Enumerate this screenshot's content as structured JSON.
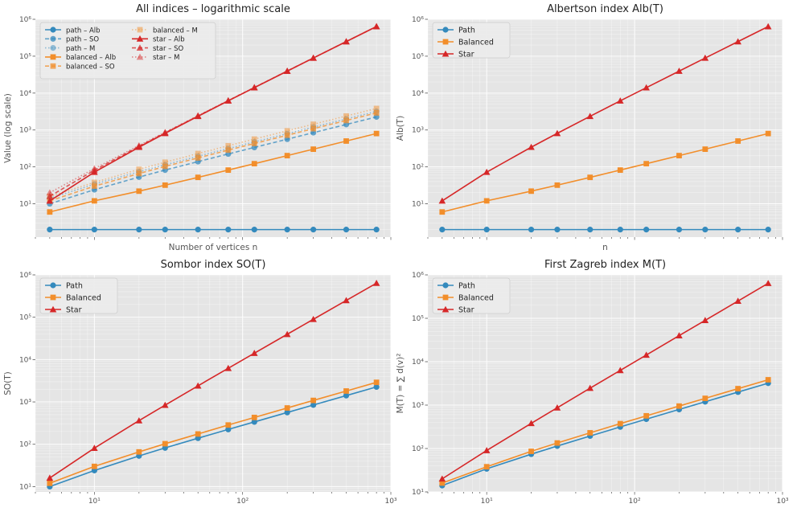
{
  "figure": {
    "colors": {
      "path": "#348abd",
      "balanced": "#f28e2b",
      "star": "#d62728",
      "axes_bg": "#e5e5e5",
      "grid": "#ffffff"
    }
  },
  "chart_data": [
    {
      "type": "line",
      "title": "All indices – logarithmic scale",
      "xlabel": "Number of vertices n",
      "ylabel": "Value (log scale)",
      "xscale": "log",
      "yscale": "log",
      "xlim": [
        4,
        1000
      ],
      "ylim": [
        1.25,
        1000000
      ],
      "show_x_ticklabels": false,
      "legend": "upper-left, 2 columns",
      "x": [
        5,
        10,
        20,
        30,
        50,
        80,
        120,
        200,
        300,
        500,
        800
      ],
      "series": [
        {
          "name": "path – Alb",
          "group": "path",
          "style": "solid",
          "marker": "o",
          "alpha": 1.0,
          "values": [
            2,
            2,
            2,
            2,
            2,
            2,
            2,
            2,
            2,
            2,
            2
          ]
        },
        {
          "name": "path – SO",
          "group": "path",
          "style": "dashed",
          "marker": "o",
          "alpha": 0.75,
          "values": [
            10,
            24,
            53,
            82,
            139,
            224,
            337,
            563,
            846,
            1411,
            2259
          ]
        },
        {
          "name": "path – M",
          "group": "path",
          "style": "dotted",
          "marker": "o",
          "alpha": 0.5,
          "values": [
            14,
            34,
            74,
            114,
            194,
            314,
            474,
            794,
            1194,
            1994,
            3194
          ]
        },
        {
          "name": "balanced – Alb",
          "group": "balanced",
          "style": "solid",
          "marker": "s",
          "alpha": 1.0,
          "values": [
            6,
            12,
            22,
            32,
            52,
            82,
            122,
            202,
            302,
            502,
            802
          ]
        },
        {
          "name": "balanced – SO",
          "group": "balanced",
          "style": "dashed",
          "marker": "s",
          "alpha": 0.75,
          "values": [
            12,
            30,
            66,
            103,
            175,
            285,
            430,
            720,
            1085,
            1810,
            2900
          ]
        },
        {
          "name": "balanced – M",
          "group": "balanced",
          "style": "dotted",
          "marker": "s",
          "alpha": 0.5,
          "values": [
            16,
            38,
            86,
            134,
            230,
            374,
            566,
            950,
            1430,
            2390,
            3830
          ]
        },
        {
          "name": "star – Alb",
          "group": "star",
          "style": "solid",
          "marker": "^",
          "alpha": 1.0,
          "values": [
            12,
            72,
            342,
            812,
            2352,
            6162,
            14042,
            39402,
            89102,
            248502,
            636002
          ]
        },
        {
          "name": "star – SO",
          "group": "star",
          "style": "dashed",
          "marker": "^",
          "alpha": 0.75,
          "values": [
            16,
            81,
            361,
            841,
            2401,
            6241,
            14161,
            39601,
            89401,
            249001,
            638401
          ]
        },
        {
          "name": "star – M",
          "group": "star",
          "style": "dotted",
          "marker": "^",
          "alpha": 0.5,
          "values": [
            20,
            90,
            380,
            870,
            2450,
            6320,
            14280,
            39800,
            89700,
            249500,
            639200
          ]
        }
      ]
    },
    {
      "type": "line",
      "title": "Albertson index Alb(T)",
      "xlabel": "n",
      "ylabel": "Alb(T)",
      "xscale": "log",
      "yscale": "log",
      "xlim": [
        4,
        1000
      ],
      "ylim": [
        1.25,
        1000000
      ],
      "show_x_ticklabels": false,
      "legend": "upper-left",
      "x": [
        5,
        10,
        20,
        30,
        50,
        80,
        120,
        200,
        300,
        500,
        800
      ],
      "series": [
        {
          "name": "Path",
          "group": "path",
          "style": "solid",
          "marker": "o",
          "alpha": 1.0,
          "values": [
            2,
            2,
            2,
            2,
            2,
            2,
            2,
            2,
            2,
            2,
            2
          ]
        },
        {
          "name": "Balanced",
          "group": "balanced",
          "style": "solid",
          "marker": "s",
          "alpha": 1.0,
          "values": [
            6,
            12,
            22,
            32,
            52,
            82,
            122,
            202,
            302,
            502,
            802
          ]
        },
        {
          "name": "Star",
          "group": "star",
          "style": "solid",
          "marker": "^",
          "alpha": 1.0,
          "values": [
            12,
            72,
            342,
            812,
            2352,
            6162,
            14042,
            39402,
            89102,
            248502,
            636002
          ]
        }
      ]
    },
    {
      "type": "line",
      "title": "Sombor index SO(T)",
      "xlabel": "",
      "ylabel": "SO(T)",
      "xscale": "log",
      "yscale": "log",
      "xlim": [
        4,
        1000
      ],
      "ylim": [
        7.5,
        1000000
      ],
      "show_x_ticklabels": true,
      "legend": "upper-left",
      "x": [
        5,
        10,
        20,
        30,
        50,
        80,
        120,
        200,
        300,
        500,
        800
      ],
      "series": [
        {
          "name": "Path",
          "group": "path",
          "style": "solid",
          "marker": "o",
          "alpha": 1.0,
          "values": [
            10,
            24,
            53,
            82,
            139,
            224,
            337,
            563,
            846,
            1411,
            2259
          ]
        },
        {
          "name": "Balanced",
          "group": "balanced",
          "style": "solid",
          "marker": "s",
          "alpha": 1.0,
          "values": [
            12,
            30,
            66,
            103,
            175,
            285,
            430,
            720,
            1085,
            1810,
            2900
          ]
        },
        {
          "name": "Star",
          "group": "star",
          "style": "solid",
          "marker": "^",
          "alpha": 1.0,
          "values": [
            16,
            81,
            361,
            841,
            2401,
            6241,
            14161,
            39601,
            89401,
            249001,
            638401
          ]
        }
      ]
    },
    {
      "type": "line",
      "title": "First Zagreb index M(T)",
      "xlabel": "",
      "ylabel": "M(T) = ∑ d(v)²",
      "xscale": "log",
      "yscale": "log",
      "xlim": [
        4,
        1000
      ],
      "ylim": [
        10,
        1000000
      ],
      "show_x_ticklabels": true,
      "legend": "upper-left",
      "x": [
        5,
        10,
        20,
        30,
        50,
        80,
        120,
        200,
        300,
        500,
        800
      ],
      "series": [
        {
          "name": "Path",
          "group": "path",
          "style": "solid",
          "marker": "o",
          "alpha": 1.0,
          "values": [
            14,
            34,
            74,
            114,
            194,
            314,
            474,
            794,
            1194,
            1994,
            3194
          ]
        },
        {
          "name": "Balanced",
          "group": "balanced",
          "style": "solid",
          "marker": "s",
          "alpha": 1.0,
          "values": [
            16,
            38,
            86,
            134,
            230,
            374,
            566,
            950,
            1430,
            2390,
            3830
          ]
        },
        {
          "name": "Star",
          "group": "star",
          "style": "solid",
          "marker": "^",
          "alpha": 1.0,
          "values": [
            20,
            90,
            380,
            870,
            2450,
            6320,
            14280,
            39800,
            89700,
            249500,
            639200
          ]
        }
      ]
    }
  ]
}
